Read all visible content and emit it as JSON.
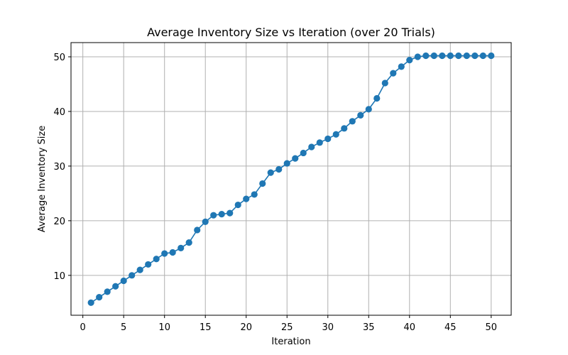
{
  "chart_data": {
    "type": "line",
    "title": "Average Inventory Size vs Iteration (over 20 Trials)",
    "xlabel": "Iteration",
    "ylabel": "Average Inventory Size",
    "xlim": [
      -1.45,
      52.45
    ],
    "ylim": [
      2.7,
      52.6
    ],
    "xticks": [
      0,
      5,
      10,
      15,
      20,
      25,
      30,
      35,
      40,
      45,
      50
    ],
    "yticks": [
      10,
      20,
      30,
      40,
      50
    ],
    "grid": true,
    "marker": "circle",
    "color": "#1f77b4",
    "x": [
      1,
      2,
      3,
      4,
      5,
      6,
      7,
      8,
      9,
      10,
      11,
      12,
      13,
      14,
      15,
      16,
      17,
      18,
      19,
      20,
      21,
      22,
      23,
      24,
      25,
      26,
      27,
      28,
      29,
      30,
      31,
      32,
      33,
      34,
      35,
      36,
      37,
      38,
      39,
      40,
      41,
      42,
      43,
      44,
      45,
      46,
      47,
      48,
      49,
      50
    ],
    "series": [
      {
        "values": [
          5.0,
          6.0,
          7.0,
          8.0,
          9.0,
          10.0,
          11.0,
          12.0,
          13.0,
          14.0,
          14.2,
          15.0,
          16.0,
          18.3,
          19.8,
          21.0,
          21.2,
          21.4,
          22.9,
          24.0,
          24.8,
          26.8,
          28.8,
          29.4,
          30.5,
          31.4,
          32.4,
          33.5,
          34.3,
          35.0,
          35.8,
          36.9,
          38.2,
          39.3,
          40.4,
          42.4,
          45.2,
          47.0,
          48.2,
          49.4,
          50.0,
          50.2,
          50.2,
          50.2,
          50.2,
          50.2,
          50.2,
          50.2,
          50.2,
          50.2
        ]
      }
    ]
  }
}
